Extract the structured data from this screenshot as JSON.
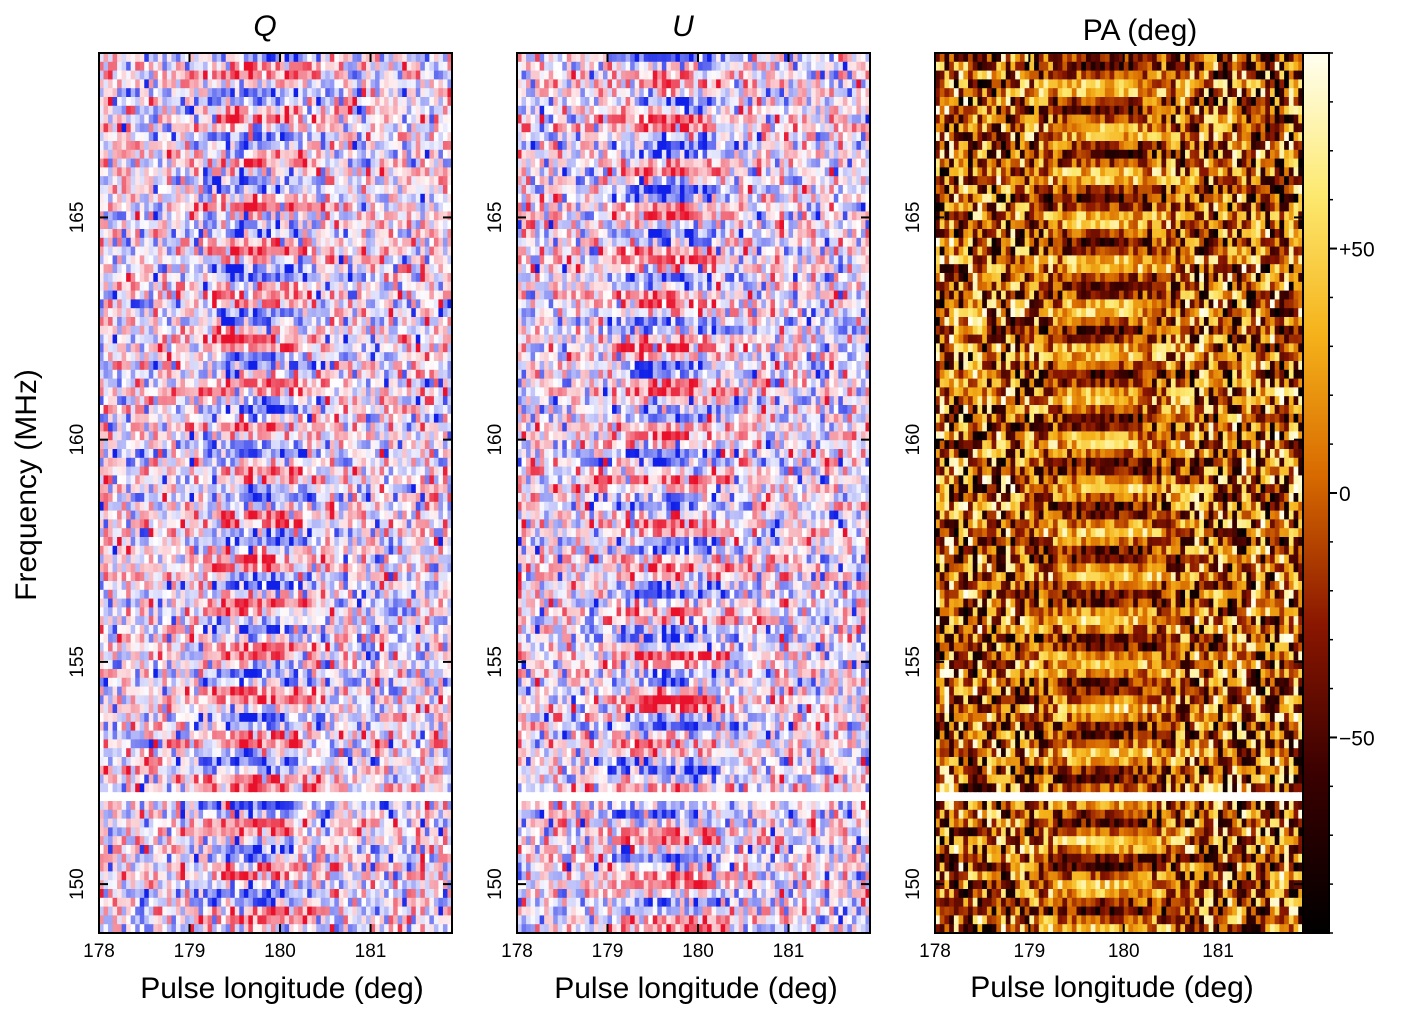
{
  "figure": {
    "ylabel": "Frequency (MHz)",
    "shared_gap_frequency_mhz": [
      151.8,
      152.0
    ]
  },
  "chart_data": [
    {
      "type": "heatmap",
      "title": "Q",
      "title_italic": true,
      "xlabel": "Pulse longitude (deg)",
      "ylabel": "Frequency (MHz)",
      "xlim": [
        178,
        181.9
      ],
      "ylim": [
        148.9,
        168.7
      ],
      "xticks": [
        "178",
        "179",
        "180",
        "181"
      ],
      "yticks": [
        "150",
        "155",
        "160",
        "165"
      ],
      "xtick_values": [
        178,
        179,
        180,
        181
      ],
      "ytick_values": [
        150,
        155,
        160,
        165
      ],
      "colormap": "blue-white-red",
      "pulse_center_deg": 179.75,
      "pulse_width_deg": 1.2,
      "band_period_mhz": 1.0,
      "colors": {
        "positive": "#e8102a",
        "negative": "#1020e8",
        "zero": "#ffffff"
      }
    },
    {
      "type": "heatmap",
      "title": "U",
      "title_italic": true,
      "xlabel": "Pulse longitude (deg)",
      "ylabel": "",
      "xlim": [
        178,
        181.9
      ],
      "ylim": [
        148.9,
        168.7
      ],
      "xticks": [
        "178",
        "179",
        "180",
        "181"
      ],
      "yticks": [
        "150",
        "155",
        "160",
        "165"
      ],
      "xtick_values": [
        178,
        179,
        180,
        181
      ],
      "ytick_values": [
        150,
        155,
        160,
        165
      ],
      "colormap": "blue-white-red",
      "pulse_center_deg": 179.7,
      "pulse_width_deg": 1.2,
      "band_period_mhz": 1.0,
      "colors": {
        "positive": "#e8102a",
        "negative": "#1020e8",
        "zero": "#ffffff"
      }
    },
    {
      "type": "heatmap",
      "title": "PA (deg)",
      "title_italic": false,
      "xlabel": "Pulse longitude (deg)",
      "ylabel": "",
      "xlim": [
        178,
        181.9
      ],
      "ylim": [
        148.9,
        168.7
      ],
      "xticks": [
        "178",
        "179",
        "180",
        "181"
      ],
      "yticks": [
        "150",
        "155",
        "160",
        "165"
      ],
      "xtick_values": [
        178,
        179,
        180,
        181
      ],
      "ytick_values": [
        150,
        155,
        160,
        165
      ],
      "colormap": "hot",
      "pulse_center_deg": 179.8,
      "pulse_width_deg": 1.3,
      "band_period_mhz": 1.0,
      "colorbar": {
        "range": [
          -90,
          90
        ],
        "tick_labels": [
          "+50",
          "0",
          "−50"
        ],
        "tick_values": [
          50,
          0,
          -50
        ]
      }
    }
  ]
}
